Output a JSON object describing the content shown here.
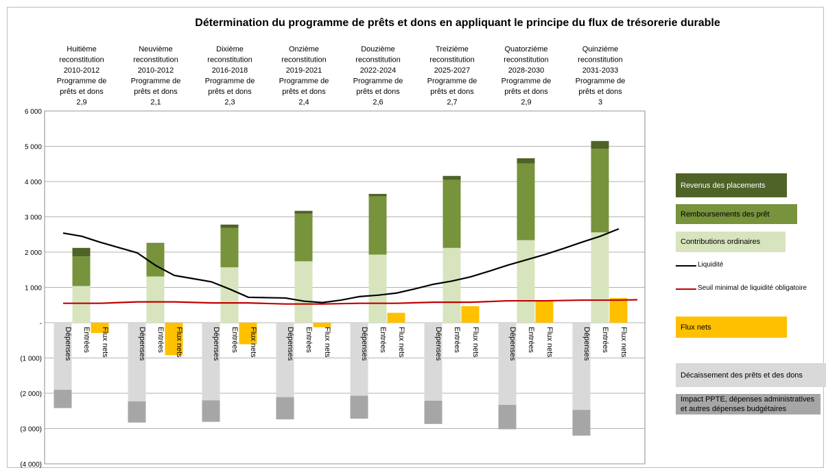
{
  "chart_data": {
    "type": "bar",
    "title": "Détermination du programme de prêts et dons en appliquant le principe du flux de trésorerie durable",
    "group_labels": [
      [
        "Huitième",
        "reconstitution",
        "2010-2012",
        "Programme de",
        "prêts et dons",
        "2,9"
      ],
      [
        "Neuvième",
        "reconstitution",
        "2010-2012",
        "Programme de",
        "prêts et dons",
        "2,1"
      ],
      [
        "Dixième",
        "reconstitution",
        "2016-2018",
        "Programme de",
        "prêts et dons",
        "2,3"
      ],
      [
        "Onzième",
        "reconstitution",
        "2019-2021",
        "Programme de",
        "prêts et dons",
        "2,4"
      ],
      [
        "Douzième",
        "reconstitution",
        "2022-2024",
        "Programme de",
        "prêts et dons",
        "2,6"
      ],
      [
        "Treizième",
        "reconstitution",
        "2025-2027",
        "Programme de",
        "prêts et dons",
        "2,7"
      ],
      [
        "Quatorzième",
        "reconstitution",
        "2028-2030",
        "Programme de",
        "prêts et dons",
        "2,9"
      ],
      [
        "Quinzième",
        "reconstitution",
        "2031-2033",
        "Programme de",
        "prêts et dons",
        "3"
      ]
    ],
    "categories": [
      "Dépenses",
      "Entrées",
      "Flux nets",
      null,
      "Dépenses",
      "Entrées",
      "Flux nets",
      null,
      "Dépenses",
      "Entrées",
      "Flux nets",
      null,
      "Dépenses",
      "Entrées",
      "Flux nets",
      null,
      "Dépenses",
      "Entrées",
      "Flux nets",
      null,
      "Dépenses",
      "Entrées",
      "Flux nets",
      null,
      "Dépenses",
      "Entrées",
      "Flux nets",
      null,
      "Dépenses",
      "Entrées",
      "Flux nets",
      null
    ],
    "series": [
      {
        "name": "Revenus des placements",
        "type": "bar",
        "color": "#4f6228",
        "values": [
          null,
          240,
          null,
          null,
          null,
          20,
          null,
          null,
          null,
          90,
          null,
          null,
          null,
          80,
          null,
          null,
          null,
          70,
          null,
          null,
          null,
          110,
          null,
          null,
          null,
          150,
          null,
          null,
          null,
          220,
          null,
          null
        ]
      },
      {
        "name": "Remboursements des prêt",
        "type": "bar",
        "color": "#77933c",
        "values": [
          null,
          840,
          null,
          null,
          null,
          930,
          null,
          null,
          null,
          1120,
          null,
          null,
          null,
          1350,
          null,
          null,
          null,
          1650,
          null,
          null,
          null,
          1930,
          null,
          null,
          null,
          2170,
          null,
          null,
          null,
          2370,
          null,
          null
        ]
      },
      {
        "name": "Contributions ordinaires",
        "type": "bar",
        "color": "#d7e4bd",
        "values": [
          null,
          1040,
          null,
          null,
          null,
          1310,
          null,
          null,
          null,
          1570,
          null,
          null,
          null,
          1740,
          null,
          null,
          null,
          1930,
          null,
          null,
          null,
          2120,
          null,
          null,
          null,
          2340,
          null,
          null,
          null,
          2560,
          null,
          null
        ]
      },
      {
        "name": "Liquidité",
        "type": "line",
        "color": "#000000",
        "values": [
          2540,
          2450,
          2280,
          2130,
          1980,
          1620,
          1340,
          1250,
          1160,
          950,
          720,
          710,
          700,
          610,
          570,
          640,
          740,
          780,
          840,
          960,
          1090,
          1180,
          1300,
          1460,
          1630,
          1780,
          1930,
          2100,
          2280,
          2450,
          2660,
          null
        ]
      },
      {
        "name": "Seuil minimal de liquidité obligatoire",
        "type": "line",
        "color": "#c00000",
        "values": [
          550,
          550,
          550,
          570,
          590,
          590,
          590,
          575,
          560,
          560,
          560,
          545,
          530,
          530,
          530,
          540,
          550,
          550,
          550,
          565,
          580,
          580,
          580,
          600,
          620,
          620,
          620,
          630,
          640,
          640,
          640,
          650
        ]
      },
      {
        "name": "Flux nets",
        "type": "bar",
        "color": "#ffc000",
        "values": [
          null,
          null,
          -290,
          null,
          null,
          null,
          -920,
          null,
          null,
          null,
          -610,
          null,
          null,
          null,
          -130,
          null,
          null,
          null,
          280,
          null,
          null,
          null,
          470,
          null,
          null,
          null,
          620,
          null,
          null,
          null,
          700,
          null
        ]
      },
      {
        "name": "Décaissement des prêts et des dons",
        "type": "bar",
        "color": "#d9d9d9",
        "values": [
          -1900,
          null,
          null,
          null,
          -2230,
          null,
          null,
          null,
          -2200,
          null,
          null,
          null,
          -2110,
          null,
          null,
          null,
          -2070,
          null,
          null,
          null,
          -2210,
          null,
          null,
          null,
          -2330,
          null,
          null,
          null,
          -2470,
          null,
          null,
          null
        ]
      },
      {
        "name": "Impact PPTE, dépenses administratives et autres dépenses budgétaires",
        "type": "bar",
        "color": "#a6a6a6",
        "values": [
          -520,
          null,
          null,
          null,
          -600,
          null,
          null,
          null,
          -610,
          null,
          null,
          null,
          -630,
          null,
          null,
          null,
          -650,
          null,
          null,
          null,
          -660,
          null,
          null,
          null,
          -690,
          null,
          null,
          null,
          -730,
          null,
          null,
          null
        ]
      }
    ],
    "ylim": [
      -4000,
      6000
    ],
    "yticks": [
      {
        "value": -4000,
        "label": "(4 000)"
      },
      {
        "value": -3000,
        "label": "(3 000)"
      },
      {
        "value": -2000,
        "label": "(2 000)"
      },
      {
        "value": -1000,
        "label": "(1 000)"
      },
      {
        "value": 0,
        "label": "-"
      },
      {
        "value": 1000,
        "label": "1 000"
      },
      {
        "value": 2000,
        "label": "2 000"
      },
      {
        "value": 3000,
        "label": "3 000"
      },
      {
        "value": 4000,
        "label": "4 000"
      },
      {
        "value": 5000,
        "label": "5 000"
      },
      {
        "value": 6000,
        "label": "6 000"
      }
    ],
    "grid": true
  }
}
